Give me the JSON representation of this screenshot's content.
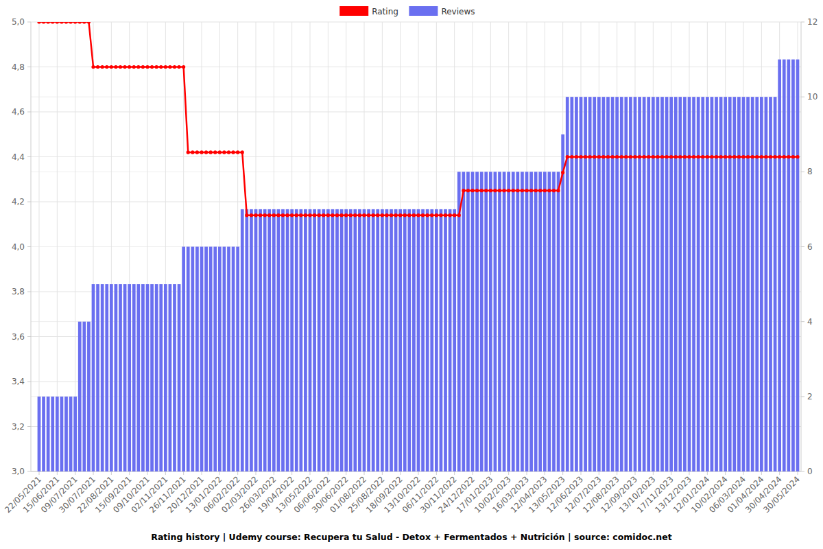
{
  "chart_data": {
    "type": "bar",
    "title": "Rating history | Udemy course: Recupera tu Salud - Detox + Fermentados + Nutrición | source: comidoc.net",
    "categories": [
      "22/05/2021",
      null,
      null,
      null,
      "15/06/2021",
      null,
      null,
      null,
      "09/07/2021",
      null,
      null,
      null,
      "30/07/2021",
      null,
      null,
      null,
      "22/08/2021",
      null,
      null,
      null,
      "15/09/2021",
      null,
      null,
      null,
      "09/10/2021",
      null,
      null,
      null,
      "02/11/2021",
      null,
      null,
      null,
      "26/11/2021",
      null,
      null,
      null,
      "20/12/2021",
      null,
      null,
      null,
      "13/01/2022",
      null,
      null,
      null,
      "06/02/2022",
      null,
      null,
      null,
      "02/03/2022",
      null,
      null,
      null,
      "26/03/2022",
      null,
      null,
      null,
      "19/04/2022",
      null,
      null,
      null,
      "13/05/2022",
      null,
      null,
      null,
      "06/06/2022",
      null,
      null,
      null,
      "30/06/2022",
      null,
      null,
      null,
      "01/08/2022",
      null,
      null,
      null,
      "25/08/2022",
      null,
      null,
      null,
      "18/09/2022",
      null,
      null,
      null,
      "13/10/2022",
      null,
      null,
      null,
      "06/11/2022",
      null,
      null,
      null,
      "30/11/2022",
      null,
      null,
      null,
      "24/12/2022",
      null,
      null,
      null,
      "17/01/2023",
      null,
      null,
      null,
      "10/02/2023",
      null,
      null,
      null,
      "16/03/2023",
      null,
      null,
      null,
      "12/04/2023",
      null,
      null,
      null,
      "13/05/2023",
      null,
      null,
      null,
      "12/06/2023",
      null,
      null,
      null,
      "12/07/2023",
      null,
      null,
      null,
      "12/08/2023",
      null,
      null,
      null,
      "12/09/2023",
      null,
      null,
      null,
      "13/10/2023",
      null,
      null,
      null,
      "17/11/2023",
      null,
      null,
      null,
      "13/12/2023",
      null,
      null,
      null,
      "12/01/2024",
      null,
      null,
      null,
      "10/02/2024",
      null,
      null,
      null,
      "06/03/2024",
      null,
      null,
      null,
      "01/04/2024",
      null,
      null,
      null,
      "30/04/2024",
      null,
      null,
      null,
      "30/05/2024"
    ],
    "series": [
      {
        "name": "Rating",
        "type": "line",
        "color": "#ff0000",
        "marker": "circle",
        "values": [
          5,
          5,
          5,
          5,
          5,
          5,
          5,
          5,
          5,
          5,
          5,
          5,
          4.8,
          4.8,
          4.8,
          4.8,
          4.8,
          4.8,
          4.8,
          4.8,
          4.8,
          4.8,
          4.8,
          4.8,
          4.8,
          4.8,
          4.8,
          4.8,
          4.8,
          4.8,
          4.8,
          4.8,
          4.8,
          4.42,
          4.42,
          4.42,
          4.42,
          4.42,
          4.42,
          4.42,
          4.42,
          4.42,
          4.42,
          4.42,
          4.42,
          4.42,
          4.14,
          4.14,
          4.14,
          4.14,
          4.14,
          4.14,
          4.14,
          4.14,
          4.14,
          4.14,
          4.14,
          4.14,
          4.14,
          4.14,
          4.14,
          4.14,
          4.14,
          4.14,
          4.14,
          4.14,
          4.14,
          4.14,
          4.14,
          4.14,
          4.14,
          4.14,
          4.14,
          4.14,
          4.14,
          4.14,
          4.14,
          4.14,
          4.14,
          4.14,
          4.14,
          4.14,
          4.14,
          4.14,
          4.14,
          4.14,
          4.14,
          4.14,
          4.14,
          4.14,
          4.14,
          4.14,
          4.14,
          4.14,
          4.25,
          4.25,
          4.25,
          4.25,
          4.25,
          4.25,
          4.25,
          4.25,
          4.25,
          4.25,
          4.25,
          4.25,
          4.25,
          4.25,
          4.25,
          4.25,
          4.25,
          4.25,
          4.25,
          4.25,
          4.25,
          4.25,
          4.33,
          4.4,
          4.4,
          4.4,
          4.4,
          4.4,
          4.4,
          4.4,
          4.4,
          4.4,
          4.4,
          4.4,
          4.4,
          4.4,
          4.4,
          4.4,
          4.4,
          4.4,
          4.4,
          4.4,
          4.4,
          4.4,
          4.4,
          4.4,
          4.4,
          4.4,
          4.4,
          4.4,
          4.4,
          4.4,
          4.4,
          4.4,
          4.4,
          4.4,
          4.4,
          4.4,
          4.4,
          4.4,
          4.4,
          4.4,
          4.4,
          4.4,
          4.4,
          4.4,
          4.4,
          4.4,
          4.4,
          4.4,
          4.4,
          4.4,
          4.4,
          4.4,
          4.4
        ]
      },
      {
        "name": "Reviews",
        "type": "bar",
        "color": "#6a6ff0",
        "axis": "y2",
        "values": [
          2,
          2,
          2,
          2,
          2,
          2,
          2,
          2,
          2,
          4,
          4,
          4,
          5,
          5,
          5,
          5,
          5,
          5,
          5,
          5,
          5,
          5,
          5,
          5,
          5,
          5,
          5,
          5,
          5,
          5,
          5,
          5,
          6,
          6,
          6,
          6,
          6,
          6,
          6,
          6,
          6,
          6,
          6,
          6,
          6,
          7,
          7,
          7,
          7,
          7,
          7,
          7,
          7,
          7,
          7,
          7,
          7,
          7,
          7,
          7,
          7,
          7,
          7,
          7,
          7,
          7,
          7,
          7,
          7,
          7,
          7,
          7,
          7,
          7,
          7,
          7,
          7,
          7,
          7,
          7,
          7,
          7,
          7,
          7,
          7,
          7,
          7,
          7,
          7,
          7,
          7,
          7,
          7,
          8,
          8,
          8,
          8,
          8,
          8,
          8,
          8,
          8,
          8,
          8,
          8,
          8,
          8,
          8,
          8,
          8,
          8,
          8,
          8,
          8,
          8,
          8,
          9,
          10,
          10,
          10,
          10,
          10,
          10,
          10,
          10,
          10,
          10,
          10,
          10,
          10,
          10,
          10,
          10,
          10,
          10,
          10,
          10,
          10,
          10,
          10,
          10,
          10,
          10,
          10,
          10,
          10,
          10,
          10,
          10,
          10,
          10,
          10,
          10,
          10,
          10,
          10,
          10,
          10,
          10,
          10,
          10,
          10,
          10,
          10,
          11,
          11,
          11,
          11,
          11
        ]
      }
    ],
    "ylim": [
      3,
      5
    ],
    "yticks": [
      {
        "value": 3,
        "label": "3,0"
      },
      {
        "value": 3.2,
        "label": "3,2"
      },
      {
        "value": 3.4,
        "label": "3,4"
      },
      {
        "value": 3.6,
        "label": "3,6"
      },
      {
        "value": 3.8,
        "label": "3,8"
      },
      {
        "value": 4,
        "label": "4,0"
      },
      {
        "value": 4.2,
        "label": "4,2"
      },
      {
        "value": 4.4,
        "label": "4,4"
      },
      {
        "value": 4.6,
        "label": "4,6"
      },
      {
        "value": 4.8,
        "label": "4,8"
      },
      {
        "value": 5,
        "label": "5,0"
      }
    ],
    "y2lim": [
      0,
      12
    ],
    "y2ticks": [
      0,
      2,
      4,
      6,
      8,
      10,
      12
    ],
    "grid": true,
    "legend": "top"
  }
}
